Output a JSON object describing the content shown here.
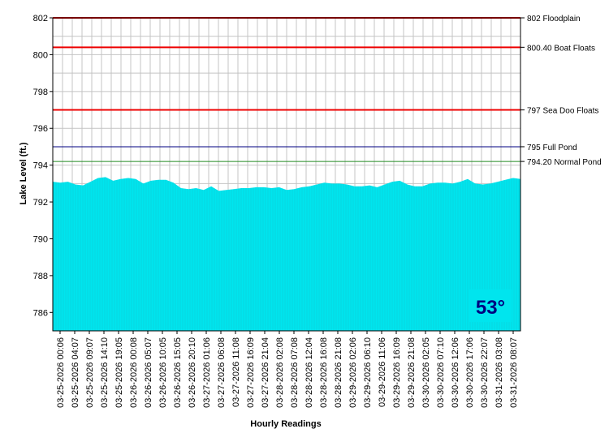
{
  "chart_data": {
    "type": "area",
    "title": "",
    "xlabel": "Hourly Readings",
    "ylabel": "Lake Level (ft.)",
    "ylim": [
      785,
      802
    ],
    "yticks": [
      786,
      788,
      790,
      792,
      794,
      796,
      798,
      800,
      802
    ],
    "grid": true,
    "x_tick_labels": [
      "03-25-2026 00:06",
      "03-25-2026 04:07",
      "03-25-2026 09:07",
      "03-25-2026 14:10",
      "03-25-2026 19:05",
      "03-26-2026 00:08",
      "03-26-2026 05:07",
      "03-26-2026 10:05",
      "03-26-2026 15:05",
      "03-26-2026 20:10",
      "03-27-2026 01:06",
      "03-27-2026 06:08",
      "03-27-2026 11:08",
      "03-27-2026 16:09",
      "03-27-2026 21:04",
      "03-28-2026 02:08",
      "03-28-2026 07:08",
      "03-28-2026 12:04",
      "03-28-2026 16:08",
      "03-28-2026 21:08",
      "03-29-2026 02:06",
      "03-29-2026 06:10",
      "03-29-2026 11:06",
      "03-29-2026 16:09",
      "03-29-2026 21:08",
      "03-30-2026 02:05",
      "03-30-2026 07:10",
      "03-30-2026 12:06",
      "03-30-2026 17:06",
      "03-30-2026 22:07",
      "03-31-2026 03:08",
      "03-31-2026 08:07"
    ],
    "series": [
      {
        "values": [
          793.1,
          793.05,
          793.1,
          792.95,
          792.9,
          793.1,
          793.3,
          793.35,
          793.15,
          793.25,
          793.3,
          793.25,
          793.0,
          793.15,
          793.2,
          793.2,
          793.05,
          792.75,
          792.7,
          792.75,
          792.65,
          792.85,
          792.6,
          792.65,
          792.7,
          792.75,
          792.75,
          792.8,
          792.8,
          792.75,
          792.8,
          792.65,
          792.7,
          792.8,
          792.85,
          792.95,
          793.05,
          793.0,
          793.0,
          792.95,
          792.85,
          792.85,
          792.9,
          792.8,
          792.95,
          793.1,
          793.15,
          792.95,
          792.85,
          792.85,
          793.0,
          793.05,
          793.05,
          793.0,
          793.1,
          793.25,
          793.0,
          792.95,
          793.0,
          793.1,
          793.2,
          793.3,
          793.25
        ]
      }
    ],
    "reference_lines": [
      {
        "value": 802,
        "label": "802 Floodplain",
        "color": "#ee0000"
      },
      {
        "value": 800.4,
        "label": "800.40 Boat Floats",
        "color": "#ee0000"
      },
      {
        "value": 797,
        "label": "797 Sea Doo Floats",
        "color": "#ee0000"
      },
      {
        "value": 795,
        "label": "795 Full Pond",
        "color": "#000080"
      },
      {
        "value": 794.2,
        "label": "794.20 Normal Pond",
        "color": "#228b22"
      }
    ],
    "fill_color": "#00e5ee",
    "overlay": {
      "text": "53°",
      "background": "#00e5ee",
      "color": "#000080"
    }
  }
}
